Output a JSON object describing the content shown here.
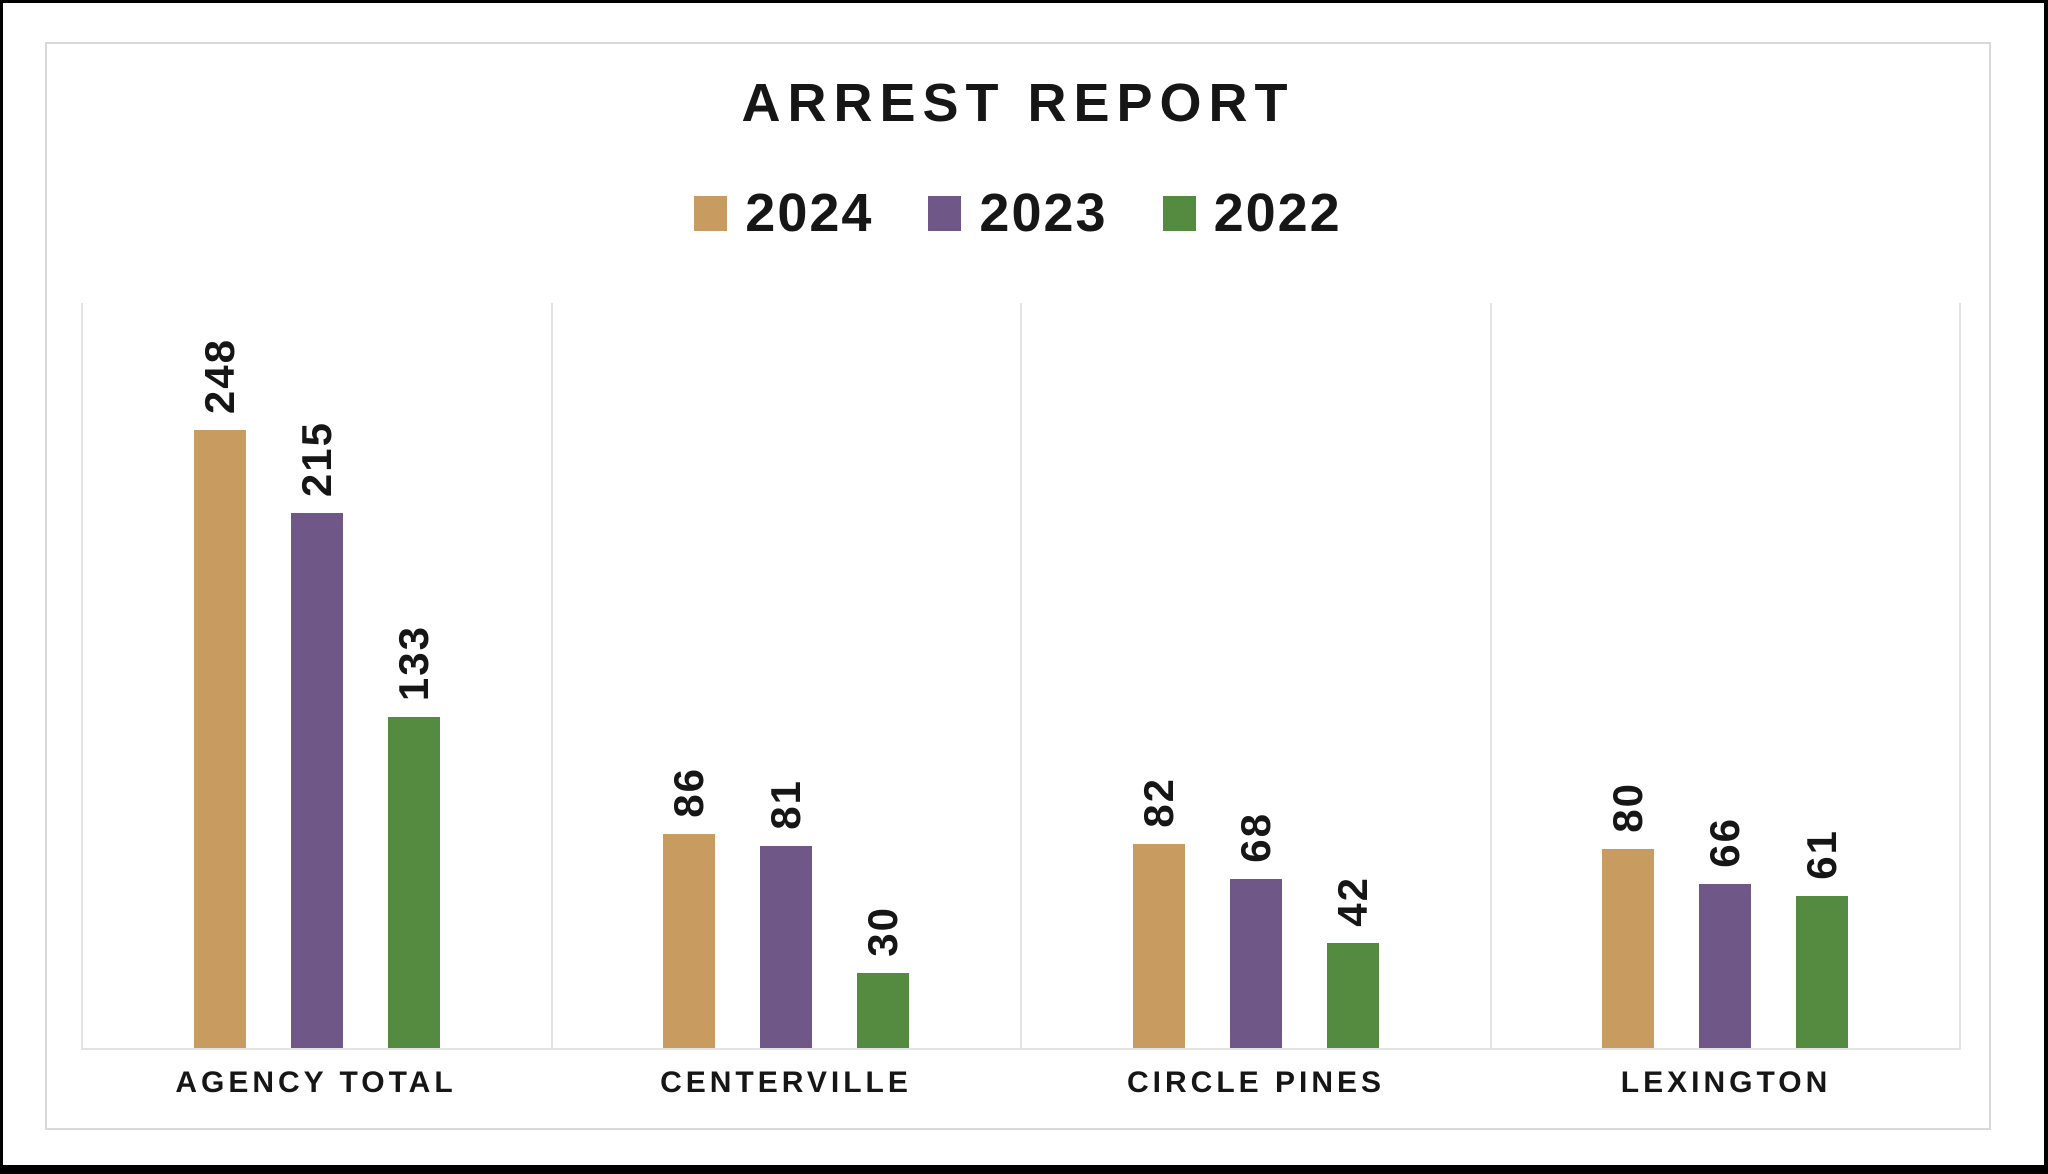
{
  "chart_data": {
    "type": "bar",
    "title": "ARREST REPORT",
    "categories": [
      "AGENCY TOTAL",
      "CENTERVILLE",
      "CIRCLE PINES",
      "LEXINGTON"
    ],
    "series": [
      {
        "name": "2024",
        "color": "#C89B60",
        "values": [
          248,
          86,
          82,
          80
        ]
      },
      {
        "name": "2023",
        "color": "#6F5787",
        "values": [
          215,
          81,
          68,
          66
        ]
      },
      {
        "name": "2022",
        "color": "#548B41",
        "values": [
          133,
          30,
          42,
          61
        ]
      }
    ],
    "ylim": [
      0,
      300
    ],
    "xlabel": "",
    "ylabel": "",
    "grid": "vertical panel dividers only, light gray",
    "legend_position": "top-center",
    "data_labels": {
      "rotation": -90,
      "position": "above bar",
      "values_shown": [
        248,
        215,
        133,
        86,
        81,
        30,
        82,
        68,
        42,
        80,
        66,
        61
      ]
    }
  },
  "colors": {
    "background": "#FFFFFF",
    "text": "#161616",
    "card_border": "#D9D9D9",
    "gridline": "#E3E3E3",
    "outer_border": "#000000",
    "series_2024": "#C89B60",
    "series_2023": "#6F5787",
    "series_2022": "#548B41"
  }
}
